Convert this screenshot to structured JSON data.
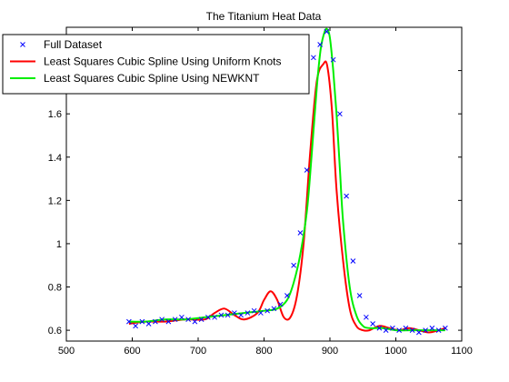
{
  "chart_data": {
    "type": "line",
    "title": "The Titanium Heat Data",
    "xlabel": "",
    "ylabel": "",
    "xlim": [
      500,
      1100
    ],
    "ylim": [
      0.55,
      2.0
    ],
    "xticks": [
      500,
      600,
      700,
      800,
      900,
      1000,
      1100
    ],
    "xtick_labels": [
      "500",
      "600",
      "700",
      "800",
      "900",
      "1000",
      "1100"
    ],
    "yticks": [
      0.6,
      0.8,
      1.0,
      1.2,
      1.4,
      1.6,
      1.8
    ],
    "ytick_labels": [
      "0.6",
      "0.8",
      "1",
      "1.2",
      "1.4",
      "1.6",
      "1.8"
    ],
    "grid": false,
    "legend_position": "top-left",
    "series": [
      {
        "name": "Full Dataset",
        "style": "markers",
        "marker": "x",
        "color": "#0000ff",
        "x": [
          595,
          605,
          615,
          625,
          635,
          645,
          655,
          665,
          675,
          685,
          695,
          705,
          715,
          725,
          735,
          745,
          755,
          765,
          775,
          785,
          795,
          805,
          815,
          825,
          835,
          845,
          855,
          865,
          875,
          885,
          895,
          905,
          915,
          925,
          935,
          945,
          955,
          965,
          975,
          985,
          995,
          1005,
          1015,
          1025,
          1035,
          1045,
          1055,
          1065,
          1075
        ],
        "y": [
          0.64,
          0.62,
          0.64,
          0.63,
          0.64,
          0.65,
          0.64,
          0.65,
          0.66,
          0.65,
          0.64,
          0.65,
          0.66,
          0.66,
          0.67,
          0.67,
          0.68,
          0.67,
          0.68,
          0.69,
          0.68,
          0.69,
          0.7,
          0.72,
          0.76,
          0.9,
          1.05,
          1.34,
          1.86,
          1.92,
          1.98,
          1.85,
          1.6,
          1.22,
          0.92,
          0.76,
          0.66,
          0.63,
          0.61,
          0.6,
          0.61,
          0.6,
          0.61,
          0.6,
          0.59,
          0.6,
          0.61,
          0.6,
          0.61
        ]
      },
      {
        "name": "Least Squares Cubic Spline Using Uniform Knots",
        "style": "line",
        "color": "#ff0000",
        "x": [
          595,
          620,
          650,
          680,
          710,
          725,
          740,
          755,
          770,
          790,
          800,
          810,
          820,
          830,
          840,
          850,
          860,
          870,
          880,
          890,
          896,
          903,
          910,
          920,
          930,
          940,
          950,
          960,
          975,
          990,
          1005,
          1020,
          1035,
          1050,
          1065,
          1075
        ],
        "y": [
          0.63,
          0.64,
          0.64,
          0.65,
          0.65,
          0.68,
          0.7,
          0.67,
          0.65,
          0.68,
          0.74,
          0.78,
          0.74,
          0.66,
          0.66,
          0.76,
          1.0,
          1.42,
          1.75,
          1.83,
          1.82,
          1.62,
          1.25,
          0.92,
          0.7,
          0.62,
          0.6,
          0.6,
          0.62,
          0.61,
          0.6,
          0.61,
          0.6,
          0.59,
          0.6,
          0.61
        ]
      },
      {
        "name": "Least Squares Cubic Spline Using NEWKNT",
        "style": "line",
        "color": "#00ee00",
        "x": [
          595,
          620,
          650,
          680,
          710,
          740,
          770,
          800,
          820,
          835,
          845,
          855,
          865,
          872,
          880,
          886,
          892,
          896,
          900,
          905,
          910,
          915,
          920,
          930,
          940,
          950,
          960,
          980,
          1000,
          1020,
          1040,
          1060,
          1075
        ],
        "y": [
          0.64,
          0.64,
          0.65,
          0.65,
          0.66,
          0.67,
          0.68,
          0.69,
          0.7,
          0.74,
          0.82,
          0.95,
          1.15,
          1.4,
          1.72,
          1.9,
          1.98,
          1.99,
          1.95,
          1.8,
          1.6,
          1.35,
          1.1,
          0.8,
          0.67,
          0.62,
          0.61,
          0.61,
          0.6,
          0.6,
          0.6,
          0.6,
          0.6
        ]
      }
    ]
  }
}
